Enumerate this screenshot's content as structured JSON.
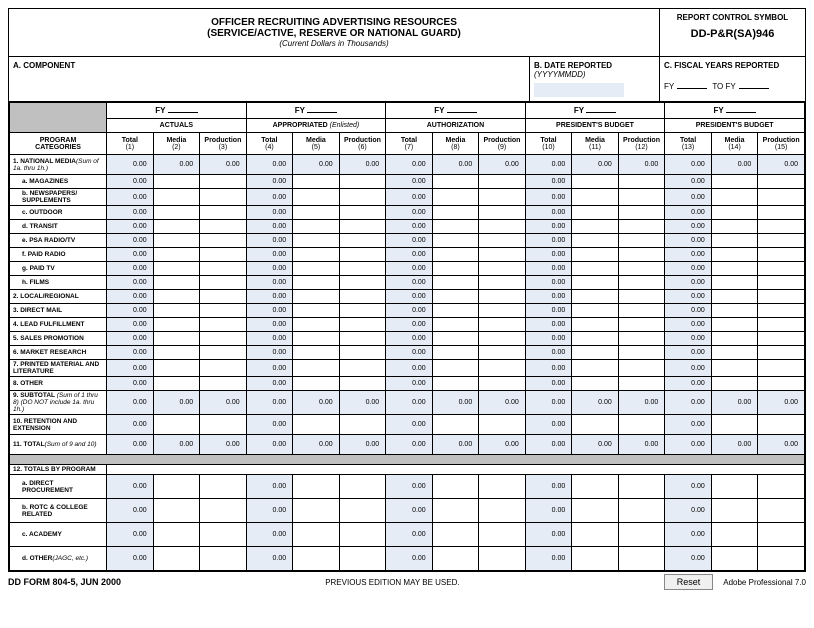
{
  "header": {
    "title1": "OFFICER RECRUITING ADVERTISING RESOURCES",
    "title2": "(SERVICE/ACTIVE, RESERVE OR NATIONAL GUARD)",
    "subtitle": "(Current Dollars in Thousands)",
    "rcs_label": "REPORT CONTROL SYMBOL",
    "rcs_value": "DD-P&R(SA)946"
  },
  "info": {
    "a_label": "A.  COMPONENT",
    "b_label": "B. DATE REPORTED",
    "b_format": "(YYYYMMDD)",
    "c_label": "C.  FISCAL YEARS REPORTED",
    "fy_prefix": "FY",
    "to_fy": "TO FY"
  },
  "fy_label": "FY",
  "groups": [
    {
      "label": "ACTUALS",
      "italic": ""
    },
    {
      "label": "APPROPRIATED ",
      "italic": "(Enlisted)"
    },
    {
      "label": "AUTHORIZATION",
      "italic": ""
    },
    {
      "label": "PRESIDENT'S BUDGET",
      "italic": ""
    },
    {
      "label": "PRESIDENT'S BUDGET",
      "italic": ""
    }
  ],
  "cat_header": "PROGRAM CATEGORIES",
  "cols": [
    "Total",
    "Media",
    "Production",
    "Total",
    "Media",
    "Production",
    "Total",
    "Media",
    "Production",
    "Total",
    "Media",
    "Production",
    "Total",
    "Media",
    "Production"
  ],
  "col_nums": [
    "(1)",
    "(2)",
    "(3)",
    "(4)",
    "(5)",
    "(6)",
    "(7)",
    "(8)",
    "(9)",
    "(10)",
    "(11)",
    "(12)",
    "(13)",
    "(14)",
    "(15)"
  ],
  "rows": [
    {
      "label": "1. NATIONAL MEDIA",
      "sub": "(Sum of 1a. thru 1h.)",
      "indent": false,
      "vals": [
        "0.00",
        "0.00",
        "0.00",
        "0.00",
        "0.00",
        "0.00",
        "0.00",
        "0.00",
        "0.00",
        "0.00",
        "0.00",
        "0.00",
        "0.00",
        "0.00",
        "0.00"
      ],
      "h": "med"
    },
    {
      "label": "a. MAGAZINES",
      "indent": true,
      "vals": [
        "0.00",
        "",
        "",
        "0.00",
        "",
        "",
        "0.00",
        "",
        "",
        "0.00",
        "",
        "",
        "0.00",
        "",
        ""
      ]
    },
    {
      "label": "b. NEWSPAPERS/ SUPPLEMENTS",
      "indent": true,
      "vals": [
        "0.00",
        "",
        "",
        "0.00",
        "",
        "",
        "0.00",
        "",
        "",
        "0.00",
        "",
        "",
        "0.00",
        "",
        ""
      ]
    },
    {
      "label": "c. OUTDOOR",
      "indent": true,
      "vals": [
        "0.00",
        "",
        "",
        "0.00",
        "",
        "",
        "0.00",
        "",
        "",
        "0.00",
        "",
        "",
        "0.00",
        "",
        ""
      ]
    },
    {
      "label": "d. TRANSIT",
      "indent": true,
      "vals": [
        "0.00",
        "",
        "",
        "0.00",
        "",
        "",
        "0.00",
        "",
        "",
        "0.00",
        "",
        "",
        "0.00",
        "",
        ""
      ]
    },
    {
      "label": "e. PSA RADIO/TV",
      "indent": true,
      "vals": [
        "0.00",
        "",
        "",
        "0.00",
        "",
        "",
        "0.00",
        "",
        "",
        "0.00",
        "",
        "",
        "0.00",
        "",
        ""
      ]
    },
    {
      "label": "f. PAID RADIO",
      "indent": true,
      "vals": [
        "0.00",
        "",
        "",
        "0.00",
        "",
        "",
        "0.00",
        "",
        "",
        "0.00",
        "",
        "",
        "0.00",
        "",
        ""
      ]
    },
    {
      "label": "g. PAID TV",
      "indent": true,
      "vals": [
        "0.00",
        "",
        "",
        "0.00",
        "",
        "",
        "0.00",
        "",
        "",
        "0.00",
        "",
        "",
        "0.00",
        "",
        ""
      ]
    },
    {
      "label": "h. FILMS",
      "indent": true,
      "vals": [
        "0.00",
        "",
        "",
        "0.00",
        "",
        "",
        "0.00",
        "",
        "",
        "0.00",
        "",
        "",
        "0.00",
        "",
        ""
      ]
    },
    {
      "label": "2. LOCAL/REGIONAL",
      "indent": false,
      "vals": [
        "0.00",
        "",
        "",
        "0.00",
        "",
        "",
        "0.00",
        "",
        "",
        "0.00",
        "",
        "",
        "0.00",
        "",
        ""
      ]
    },
    {
      "label": "3. DIRECT MAIL",
      "indent": false,
      "vals": [
        "0.00",
        "",
        "",
        "0.00",
        "",
        "",
        "0.00",
        "",
        "",
        "0.00",
        "",
        "",
        "0.00",
        "",
        ""
      ]
    },
    {
      "label": "4. LEAD FULFILLMENT",
      "indent": false,
      "vals": [
        "0.00",
        "",
        "",
        "0.00",
        "",
        "",
        "0.00",
        "",
        "",
        "0.00",
        "",
        "",
        "0.00",
        "",
        ""
      ]
    },
    {
      "label": "5. SALES PROMOTION",
      "indent": false,
      "vals": [
        "0.00",
        "",
        "",
        "0.00",
        "",
        "",
        "0.00",
        "",
        "",
        "0.00",
        "",
        "",
        "0.00",
        "",
        ""
      ]
    },
    {
      "label": "6. MARKET RESEARCH",
      "indent": false,
      "vals": [
        "0.00",
        "",
        "",
        "0.00",
        "",
        "",
        "0.00",
        "",
        "",
        "0.00",
        "",
        "",
        "0.00",
        "",
        ""
      ]
    },
    {
      "label": "7. PRINTED MATERIAL AND LITERATURE",
      "indent": false,
      "vals": [
        "0.00",
        "",
        "",
        "0.00",
        "",
        "",
        "0.00",
        "",
        "",
        "0.00",
        "",
        "",
        "0.00",
        "",
        ""
      ]
    },
    {
      "label": "8. OTHER",
      "indent": false,
      "vals": [
        "0.00",
        "",
        "",
        "0.00",
        "",
        "",
        "0.00",
        "",
        "",
        "0.00",
        "",
        "",
        "0.00",
        "",
        ""
      ]
    },
    {
      "label": "9. SUBTOTAL ",
      "sub": "(Sum of 1 thru 8) (DO NOT include 1a. thru 1h.)",
      "indent": false,
      "vals": [
        "0.00",
        "0.00",
        "0.00",
        "0.00",
        "0.00",
        "0.00",
        "0.00",
        "0.00",
        "0.00",
        "0.00",
        "0.00",
        "0.00",
        "0.00",
        "0.00",
        "0.00"
      ],
      "h": "tall"
    },
    {
      "label": "10. RETENTION AND EXTENSION",
      "indent": false,
      "vals": [
        "0.00",
        "",
        "",
        "0.00",
        "",
        "",
        "0.00",
        "",
        "",
        "0.00",
        "",
        "",
        "0.00",
        "",
        ""
      ],
      "h": "med"
    },
    {
      "label": "11. TOTAL",
      "sub": "(Sum of 9 and 10)",
      "indent": false,
      "vals": [
        "0.00",
        "0.00",
        "0.00",
        "0.00",
        "0.00",
        "0.00",
        "0.00",
        "0.00",
        "0.00",
        "0.00",
        "0.00",
        "0.00",
        "0.00",
        "0.00",
        "0.00"
      ],
      "h": "med"
    },
    {
      "gray": true
    },
    {
      "label": "12. TOTALS BY PROGRAM",
      "indent": false,
      "label_only": true
    },
    {
      "label": "a. DIRECT PROCUREMENT",
      "indent": true,
      "vals": [
        "0.00",
        "",
        "",
        "0.00",
        "",
        "",
        "0.00",
        "",
        "",
        "0.00",
        "",
        "",
        "0.00",
        "",
        ""
      ],
      "h": "tall"
    },
    {
      "label": "b. ROTC & COLLEGE RELATED",
      "indent": true,
      "vals": [
        "0.00",
        "",
        "",
        "0.00",
        "",
        "",
        "0.00",
        "",
        "",
        "0.00",
        "",
        "",
        "0.00",
        "",
        ""
      ],
      "h": "tall"
    },
    {
      "label": "c. ACADEMY",
      "indent": true,
      "vals": [
        "0.00",
        "",
        "",
        "0.00",
        "",
        "",
        "0.00",
        "",
        "",
        "0.00",
        "",
        "",
        "0.00",
        "",
        ""
      ],
      "h": "tall"
    },
    {
      "label": "d. OTHER",
      "sub": "(JAGC, etc.)",
      "indent": true,
      "vals": [
        "0.00",
        "",
        "",
        "0.00",
        "",
        "",
        "0.00",
        "",
        "",
        "0.00",
        "",
        "",
        "0.00",
        "",
        ""
      ],
      "h": "tall"
    }
  ],
  "footer": {
    "left": "DD FORM 804-5, JUN 2000",
    "center": "PREVIOUS EDITION MAY BE USED.",
    "reset": "Reset",
    "right": "Adobe Professional 7.0"
  }
}
